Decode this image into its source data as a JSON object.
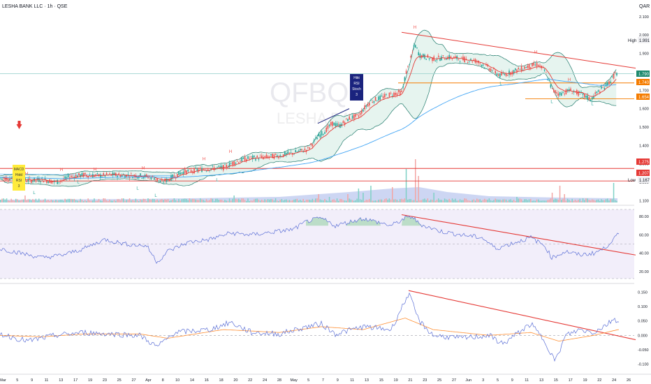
{
  "header": {
    "title": "LESHA BANK LLC · 1h · QSE",
    "currency": "QAR"
  },
  "watermark": {
    "ticker": "QFBQ",
    "name": "LESHA BANK"
  },
  "colors": {
    "up": "#26a69a",
    "down": "#ef5350",
    "bb_line": "#1f7a6b",
    "bb_fill": "#e6f4ef",
    "ema_red": "#e53935",
    "ema_blue": "#42a5f5",
    "trend": "#e53935",
    "rsi": "#5b6fd6",
    "rsi_band": "#f2eefa",
    "macd": "#5b6fd6",
    "signal": "#ff8f33",
    "res_orange": "#f57c00",
    "sup_red": "#e53935",
    "last_green": "#1e8a6e"
  },
  "price_axis": {
    "ticks": [
      "2.100",
      "2.000",
      "1.900",
      "1.800",
      "1.700",
      "1.600",
      "1.500",
      "1.400",
      "1.300",
      "1.200",
      "1.100"
    ]
  },
  "price_labels": [
    {
      "text": "High",
      "value": "1.991"
    },
    {
      "text": "",
      "value": "1.790"
    },
    {
      "text": "",
      "value": "1.740"
    },
    {
      "text": "",
      "value": "1.654"
    },
    {
      "text": "",
      "value": "1.275"
    },
    {
      "text": "",
      "value": "1.207"
    },
    {
      "text": "Low",
      "value": "1.167"
    }
  ],
  "rsi_axis": {
    "ticks": [
      "80.00",
      "60.00",
      "40.00",
      "20.00"
    ]
  },
  "macd_axis": {
    "ticks": [
      "0.150",
      "0.100",
      "0.050",
      "0.000",
      "-0.050",
      "-0.100"
    ]
  },
  "time_axis": [
    "Mar",
    "5",
    "9",
    "11",
    "13",
    "17",
    "19",
    "23",
    "25",
    "27",
    "Apr",
    "8",
    "10",
    "14",
    "16",
    "18",
    "20",
    "22",
    "24",
    "28",
    "May",
    "5",
    "7",
    "9",
    "11",
    "13",
    "15",
    "19",
    "21",
    "23",
    "25",
    "27",
    "Jun",
    "3",
    "5",
    "9",
    "11",
    "13",
    "15",
    "17",
    "19",
    "22",
    "24",
    "26"
  ],
  "annotations": {
    "bear_box": [
      "Hikt",
      "RSI",
      "Stoch",
      "3"
    ],
    "bull_box": [
      "MACD",
      "Hidd",
      "RSI",
      "3"
    ],
    "hl_marks": [
      {
        "t": "H",
        "d": "38.0 1.240"
      },
      {
        "t": "L",
        "d": "49 1.135"
      },
      {
        "t": "H",
        "d": "88 1.260"
      },
      {
        "t": "L",
        "d": "112 1.195"
      },
      {
        "t": "H",
        "d": "136 1.262"
      },
      {
        "t": "L",
        "d": "197 1.160"
      },
      {
        "t": "H",
        "d": "205 1.270"
      },
      {
        "t": "L",
        "d": "223 1.120"
      },
      {
        "t": "H",
        "d": "292 1.320"
      },
      {
        "t": "L",
        "d": "311 1.205"
      },
      {
        "t": "H",
        "d": "330 1.360"
      },
      {
        "t": "L",
        "d": "486 1.500"
      },
      {
        "t": "H",
        "d": "594 2.035"
      },
      {
        "t": "L",
        "d": "717 1.730"
      },
      {
        "t": "H",
        "d": "767 1.900"
      },
      {
        "t": "L",
        "d": "790 1.630"
      },
      {
        "t": "H",
        "d": "815 1.750"
      },
      {
        "t": "L",
        "d": "848 1.620"
      }
    ]
  },
  "chart_data": [
    {
      "type": "candlestick",
      "title": "LESHA BANK LLC · 1h · QSE",
      "ylim": [
        1.09,
        2.13
      ],
      "ylabel": "QAR",
      "price_path": [
        [
          0,
          1.225
        ],
        [
          20,
          1.22
        ],
        [
          40,
          1.21
        ],
        [
          60,
          1.215
        ],
        [
          80,
          1.2
        ],
        [
          100,
          1.23
        ],
        [
          120,
          1.24
        ],
        [
          140,
          1.235
        ],
        [
          160,
          1.24
        ],
        [
          180,
          1.238
        ],
        [
          200,
          1.235
        ],
        [
          220,
          1.225
        ],
        [
          230,
          1.2
        ],
        [
          240,
          1.215
        ],
        [
          260,
          1.255
        ],
        [
          280,
          1.265
        ],
        [
          300,
          1.275
        ],
        [
          320,
          1.28
        ],
        [
          335,
          1.31
        ],
        [
          355,
          1.33
        ],
        [
          375,
          1.335
        ],
        [
          400,
          1.345
        ],
        [
          420,
          1.36
        ],
        [
          440,
          1.38
        ],
        [
          455,
          1.45
        ],
        [
          465,
          1.48
        ],
        [
          475,
          1.52
        ],
        [
          485,
          1.505
        ],
        [
          500,
          1.55
        ],
        [
          512,
          1.56
        ],
        [
          520,
          1.6
        ],
        [
          530,
          1.64
        ],
        [
          545,
          1.66
        ],
        [
          560,
          1.68
        ],
        [
          575,
          1.69
        ],
        [
          580,
          1.79
        ],
        [
          588,
          1.88
        ],
        [
          593,
          1.95
        ],
        [
          600,
          1.89
        ],
        [
          610,
          1.88
        ],
        [
          620,
          1.87
        ],
        [
          640,
          1.88
        ],
        [
          660,
          1.87
        ],
        [
          680,
          1.86
        ],
        [
          700,
          1.82
        ],
        [
          715,
          1.78
        ],
        [
          725,
          1.79
        ],
        [
          740,
          1.81
        ],
        [
          755,
          1.83
        ],
        [
          770,
          1.84
        ],
        [
          780,
          1.8
        ],
        [
          790,
          1.7
        ],
        [
          800,
          1.68
        ],
        [
          815,
          1.7
        ],
        [
          830,
          1.68
        ],
        [
          845,
          1.65
        ],
        [
          855,
          1.69
        ],
        [
          865,
          1.72
        ],
        [
          875,
          1.76
        ],
        [
          880,
          1.79
        ]
      ],
      "levels": {
        "resistance_orange": [
          1.74,
          1.654
        ],
        "support_red": [
          1.275,
          1.207
        ],
        "cyan_line": 1.79
      }
    },
    {
      "type": "line",
      "title": "RSI",
      "ylim": [
        10,
        90
      ],
      "series": [
        {
          "values": [
            [
              0,
              45
            ],
            [
              30,
              40
            ],
            [
              60,
              35
            ],
            [
              90,
              38
            ],
            [
              120,
              45
            ],
            [
              150,
              55
            ],
            [
              180,
              50
            ],
            [
              210,
              48
            ],
            [
              225,
              30
            ],
            [
              240,
              42
            ],
            [
              270,
              52
            ],
            [
              300,
              55
            ],
            [
              330,
              62
            ],
            [
              360,
              60
            ],
            [
              390,
              63
            ],
            [
              420,
              66
            ],
            [
              440,
              75
            ],
            [
              460,
              78
            ],
            [
              480,
              70
            ],
            [
              500,
              74
            ],
            [
              520,
              78
            ],
            [
              540,
              74
            ],
            [
              560,
              70
            ],
            [
              580,
              78
            ],
            [
              590,
              80
            ],
            [
              600,
              72
            ],
            [
              630,
              64
            ],
            [
              660,
              60
            ],
            [
              690,
              57
            ],
            [
              710,
              45
            ],
            [
              730,
              50
            ],
            [
              760,
              57
            ],
            [
              780,
              48
            ],
            [
              790,
              35
            ],
            [
              810,
              42
            ],
            [
              830,
              38
            ],
            [
              850,
              40
            ],
            [
              865,
              45
            ],
            [
              875,
              53
            ],
            [
              885,
              60
            ]
          ]
        }
      ]
    },
    {
      "type": "line",
      "title": "MACD",
      "ylim": [
        -0.12,
        0.17
      ],
      "series": [
        {
          "values": [
            [
              0,
              0.005
            ],
            [
              40,
              -0.02
            ],
            [
              80,
              0.0
            ],
            [
              120,
              0.01
            ],
            [
              160,
              0.005
            ],
            [
              200,
              0.0
            ],
            [
              225,
              -0.04
            ],
            [
              250,
              0.01
            ],
            [
              300,
              0.02
            ],
            [
              330,
              0.045
            ],
            [
              360,
              0.01
            ],
            [
              400,
              0.005
            ],
            [
              440,
              0.03
            ],
            [
              460,
              0.04
            ],
            [
              480,
              0.005
            ],
            [
              520,
              0.03
            ],
            [
              560,
              0.02
            ],
            [
              585,
              0.145
            ],
            [
              600,
              0.05
            ],
            [
              620,
              0.0
            ],
            [
              660,
              -0.01
            ],
            [
              700,
              0.0
            ],
            [
              720,
              -0.03
            ],
            [
              760,
              0.04
            ],
            [
              780,
              -0.02
            ],
            [
              795,
              -0.09
            ],
            [
              810,
              0.0
            ],
            [
              830,
              0.02
            ],
            [
              850,
              0.01
            ],
            [
              870,
              0.04
            ],
            [
              880,
              0.06
            ],
            [
              885,
              0.045
            ]
          ]
        },
        {
          "values": [
            [
              0,
              0.0
            ],
            [
              60,
              -0.005
            ],
            [
              120,
              0.005
            ],
            [
              200,
              0.005
            ],
            [
              240,
              -0.01
            ],
            [
              320,
              0.02
            ],
            [
              400,
              0.01
            ],
            [
              460,
              0.03
            ],
            [
              520,
              0.02
            ],
            [
              580,
              0.06
            ],
            [
              620,
              0.02
            ],
            [
              700,
              0.0
            ],
            [
              760,
              0.01
            ],
            [
              800,
              -0.02
            ],
            [
              850,
              0.0
            ],
            [
              885,
              0.02
            ]
          ]
        }
      ]
    }
  ]
}
